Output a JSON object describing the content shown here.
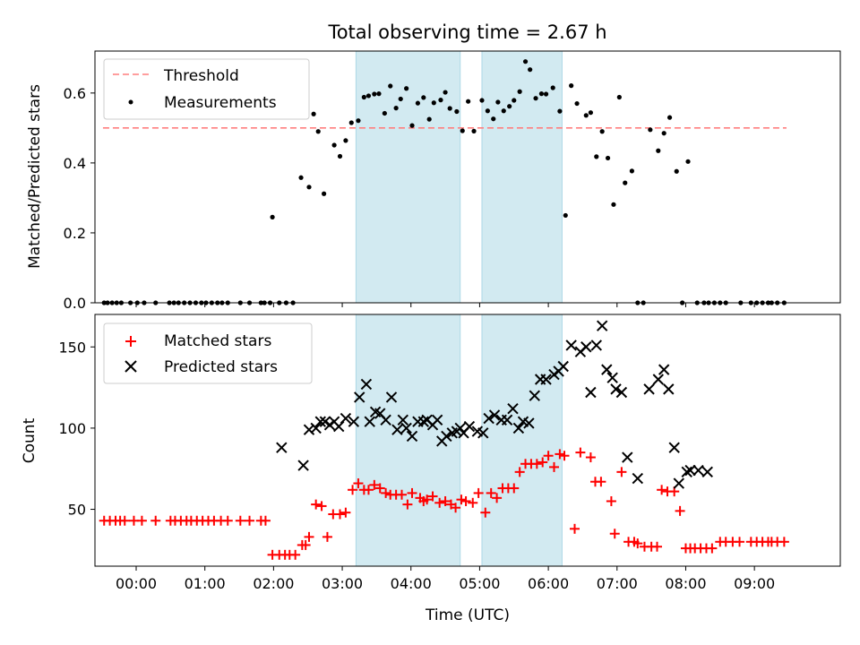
{
  "chart_data": [
    {
      "type": "scatter",
      "title": "Total observing time = 2.67 h",
      "ylabel": "Matched/Predicted stars",
      "xlabel": "",
      "xlim": [
        "23:24",
        "10:15"
      ],
      "ylim": [
        0,
        0.72
      ],
      "yticks": [
        "0.0",
        "0.2",
        "0.4",
        "0.6"
      ],
      "legend_position": "top-left",
      "shaded_intervals": [
        [
          "03:12",
          "04:43"
        ],
        [
          "05:02",
          "06:12"
        ]
      ],
      "shade_color": "#add8e6",
      "threshold": {
        "name": "Threshold",
        "value": 0.5,
        "x_range": [
          "23:31",
          "09:28"
        ],
        "color": "#ff7f7f",
        "style": "dashed"
      },
      "series": [
        {
          "name": "Measurements",
          "color": "#000000",
          "marker": "dot",
          "x": [
            "23:32",
            "23:35",
            "23:39",
            "23:43",
            "23:47",
            "23:55",
            "00:01",
            "00:07",
            "00:17",
            "00:29",
            "00:33",
            "00:37",
            "00:42",
            "00:47",
            "00:52",
            "00:57",
            "01:01",
            "01:06",
            "01:11",
            "01:15",
            "01:20",
            "01:31",
            "01:39",
            "01:49",
            "01:52",
            "01:57",
            "01:59",
            "02:05",
            "02:11",
            "02:17",
            "02:24",
            "02:31",
            "02:35",
            "02:39",
            "02:44",
            "02:53",
            "02:58",
            "03:03",
            "03:08",
            "03:14",
            "03:19",
            "03:23",
            "03:28",
            "03:32",
            "03:37",
            "03:42",
            "03:47",
            "03:51",
            "03:56",
            "04:01",
            "04:06",
            "04:11",
            "04:16",
            "04:20",
            "04:26",
            "04:30",
            "04:34",
            "04:40",
            "04:45",
            "04:50",
            "04:55",
            "05:02",
            "05:07",
            "05:12",
            "05:16",
            "05:21",
            "05:26",
            "05:30",
            "05:35",
            "05:40",
            "05:44",
            "05:49",
            "05:54",
            "05:58",
            "06:04",
            "06:10",
            "06:15",
            "06:20",
            "06:25",
            "06:33",
            "06:37",
            "06:42",
            "06:47",
            "06:52",
            "06:57",
            "07:02",
            "07:07",
            "07:13",
            "07:18",
            "07:23",
            "07:29",
            "07:36",
            "07:41",
            "07:46",
            "07:52",
            "07:57",
            "08:02",
            "08:10",
            "08:16",
            "08:20",
            "08:25",
            "08:30",
            "08:35",
            "08:48",
            "08:57",
            "09:02",
            "09:07",
            "09:12",
            "09:15",
            "09:20",
            "09:26"
          ],
          "y": [
            0,
            0,
            0,
            0,
            0,
            0,
            0,
            0,
            0,
            0,
            0,
            0,
            0,
            0,
            0,
            0,
            0,
            0,
            0,
            0,
            0,
            0,
            0,
            0,
            0,
            0,
            0.245,
            0,
            0,
            0,
            0.358,
            0.331,
            0.54,
            0.49,
            0.312,
            0.451,
            0.419,
            0.464,
            0.515,
            0.521,
            0.588,
            0.592,
            0.597,
            0.598,
            0.542,
            0.62,
            0.557,
            0.583,
            0.613,
            0.507,
            0.571,
            0.587,
            0.525,
            0.572,
            0.58,
            0.602,
            0.556,
            0.547,
            0.492,
            0.576,
            0.491,
            0.579,
            0.549,
            0.526,
            0.574,
            0.549,
            0.562,
            0.579,
            0.604,
            0.69,
            0.667,
            0.585,
            0.598,
            0.597,
            0.615,
            0.548,
            0.25,
            0.621,
            0.57,
            0.536,
            0.544,
            0.418,
            0.49,
            0.414,
            0.281,
            0.588,
            0.343,
            0.377,
            0,
            0,
            0.495,
            0.435,
            0.485,
            0.53,
            0.376,
            0,
            0.404,
            0,
            0,
            0,
            0,
            0,
            0,
            0,
            0,
            0,
            0,
            0,
            0,
            0,
            0
          ]
        }
      ]
    },
    {
      "type": "scatter",
      "title": "",
      "xlabel": "Time (UTC)",
      "ylabel": "Count",
      "xlim": [
        "23:24",
        "10:15"
      ],
      "ylim": [
        15,
        170
      ],
      "xticks": [
        "00:00",
        "01:00",
        "02:00",
        "03:00",
        "04:00",
        "05:00",
        "06:00",
        "07:00",
        "08:00",
        "09:00"
      ],
      "yticks": [
        "50",
        "100",
        "150"
      ],
      "legend_position": "top-left",
      "shaded_intervals": [
        [
          "03:12",
          "04:43"
        ],
        [
          "05:02",
          "06:12"
        ]
      ],
      "shade_color": "#add8e6",
      "series": [
        {
          "name": "Matched stars",
          "color": "#ff0000",
          "marker": "plus",
          "x": [
            "23:32",
            "23:37",
            "23:42",
            "23:46",
            "23:50",
            "23:58",
            "00:05",
            "00:17",
            "00:30",
            "00:34",
            "00:39",
            "00:44",
            "00:48",
            "00:53",
            "00:58",
            "01:03",
            "01:08",
            "01:14",
            "01:20",
            "01:31",
            "01:39",
            "01:49",
            "01:53",
            "01:59",
            "02:05",
            "02:10",
            "02:14",
            "02:19",
            "02:25",
            "02:28",
            "02:31",
            "02:37",
            "02:42",
            "02:47",
            "02:52",
            "02:58",
            "03:03",
            "03:09",
            "03:14",
            "03:19",
            "03:23",
            "03:28",
            "03:33",
            "03:38",
            "03:42",
            "03:47",
            "03:52",
            "03:57",
            "04:01",
            "04:08",
            "04:11",
            "04:14",
            "04:19",
            "04:25",
            "04:30",
            "04:35",
            "04:39",
            "04:44",
            "04:48",
            "04:54",
            "04:59",
            "05:05",
            "05:10",
            "05:15",
            "05:20",
            "05:25",
            "05:30",
            "05:35",
            "05:40",
            "05:45",
            "05:50",
            "05:55",
            "06:00",
            "06:05",
            "06:10",
            "06:14",
            "06:23",
            "06:28",
            "06:37",
            "06:41",
            "06:46",
            "06:55",
            "06:58",
            "07:04",
            "07:10",
            "07:15",
            "07:18",
            "07:24",
            "07:30",
            "07:35",
            "07:39",
            "07:44",
            "07:50",
            "07:55",
            "08:00",
            "08:04",
            "08:08",
            "08:13",
            "08:18",
            "08:23",
            "08:30",
            "08:35",
            "08:41",
            "08:47",
            "08:57",
            "09:02",
            "09:07",
            "09:12",
            "09:15",
            "09:20",
            "09:26"
          ],
          "y": [
            43,
            43,
            43,
            43,
            43,
            43,
            43,
            43,
            43,
            43,
            43,
            43,
            43,
            43,
            43,
            43,
            43,
            43,
            43,
            43,
            43,
            43,
            43,
            22,
            22,
            22,
            22,
            22,
            28,
            28,
            33,
            53,
            52,
            33,
            47,
            47,
            48,
            62,
            66,
            62,
            62,
            65,
            63,
            60,
            59,
            59,
            59,
            53,
            60,
            57,
            55,
            56,
            58,
            54,
            55,
            53,
            51,
            56,
            55,
            54,
            60,
            48,
            60,
            57,
            63,
            63,
            63,
            73,
            78,
            78,
            78,
            79,
            83,
            76,
            84,
            83,
            38,
            85,
            82,
            67,
            67,
            55,
            35,
            73,
            30,
            30,
            29,
            27,
            27,
            27,
            62,
            61,
            61,
            49,
            26,
            26,
            26,
            26,
            26,
            26,
            30,
            30,
            30,
            30,
            30,
            30,
            30,
            30,
            30,
            30,
            30
          ]
        },
        {
          "name": "Predicted stars",
          "color": "#000000",
          "marker": "x",
          "x": [
            "02:07",
            "02:26",
            "02:31",
            "02:37",
            "02:41",
            "02:45",
            "02:49",
            "02:53",
            "02:57",
            "03:03",
            "03:10",
            "03:15",
            "03:21",
            "03:24",
            "03:29",
            "03:33",
            "03:38",
            "03:43",
            "03:48",
            "03:53",
            "03:56",
            "04:01",
            "04:06",
            "04:11",
            "04:14",
            "04:19",
            "04:23",
            "04:27",
            "04:31",
            "04:36",
            "04:40",
            "04:43",
            "04:46",
            "04:51",
            "04:58",
            "05:03",
            "05:08",
            "05:13",
            "05:19",
            "05:24",
            "05:29",
            "05:34",
            "05:38",
            "05:43",
            "05:48",
            "05:53",
            "05:58",
            "06:05",
            "06:09",
            "06:13",
            "06:20",
            "06:28",
            "06:33",
            "06:37",
            "06:42",
            "06:47",
            "06:51",
            "06:56",
            "06:59",
            "07:04",
            "07:09",
            "07:18",
            "07:28",
            "07:36",
            "07:41",
            "07:45",
            "07:50",
            "07:54",
            "08:01",
            "08:04",
            "08:11",
            "08:19"
          ],
          "y": [
            88,
            77,
            99,
            100,
            104,
            104,
            102,
            104,
            101,
            106,
            104,
            119,
            127,
            104,
            110,
            109,
            105,
            119,
            99,
            105,
            100,
            95,
            104,
            104,
            105,
            102,
            105,
            92,
            95,
            97,
            98,
            100,
            97,
            101,
            98,
            97,
            106,
            108,
            105,
            105,
            112,
            100,
            104,
            103,
            120,
            130,
            130,
            133,
            135,
            138,
            151,
            147,
            150,
            122,
            151,
            163,
            136,
            131,
            124,
            122,
            82,
            69,
            124,
            130,
            136,
            124,
            88,
            66,
            73,
            74,
            74,
            73
          ]
        }
      ]
    }
  ]
}
